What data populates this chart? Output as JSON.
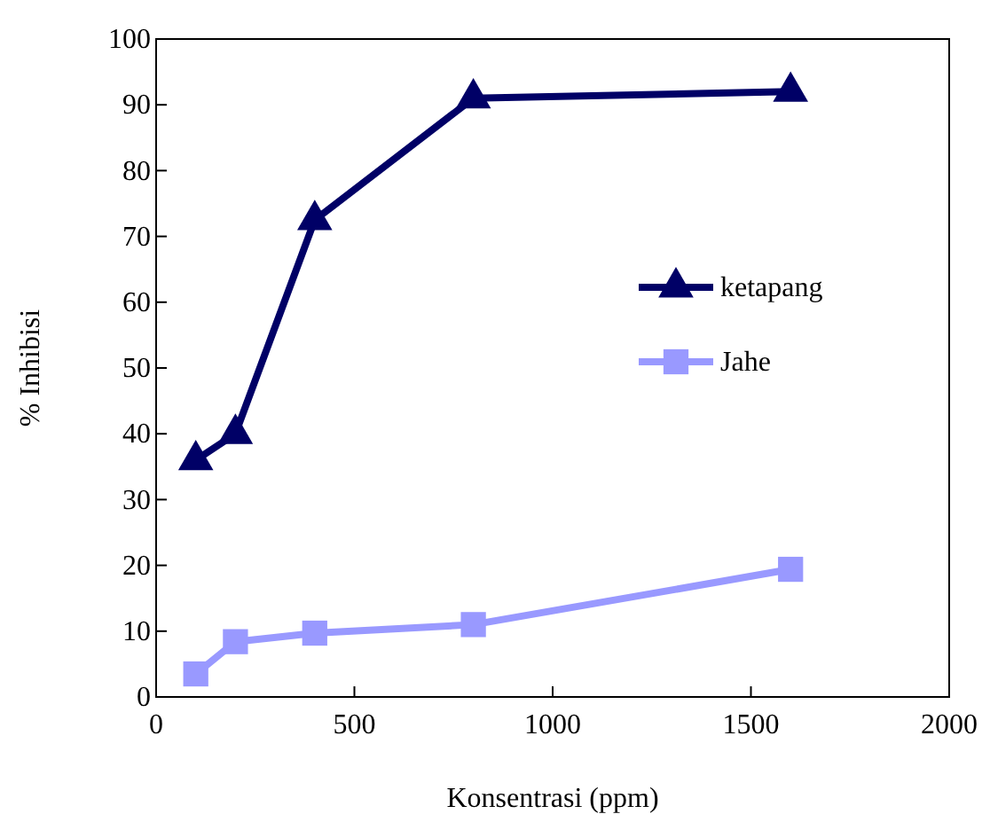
{
  "chart_data": {
    "type": "line",
    "xlabel": "Konsentrasi (ppm)",
    "ylabel": "% Inhibisi",
    "x": [
      100,
      200,
      400,
      800,
      1600
    ],
    "series": [
      {
        "name": "ketapang",
        "color": "#000066",
        "marker": "triangle",
        "values": [
          36,
          40,
          72.5,
          91,
          92
        ]
      },
      {
        "name": "Jahe",
        "color": "#9999ff",
        "marker": "square",
        "values": [
          3.5,
          8.4,
          9.7,
          11,
          19.4
        ]
      }
    ],
    "xlim": [
      0,
      2000
    ],
    "xticks": [
      0,
      500,
      1000,
      1500,
      2000
    ],
    "ylim": [
      0,
      100
    ],
    "yticks": [
      0,
      10,
      20,
      30,
      40,
      50,
      60,
      70,
      80,
      90,
      100
    ],
    "legend": "right",
    "grid": false
  }
}
